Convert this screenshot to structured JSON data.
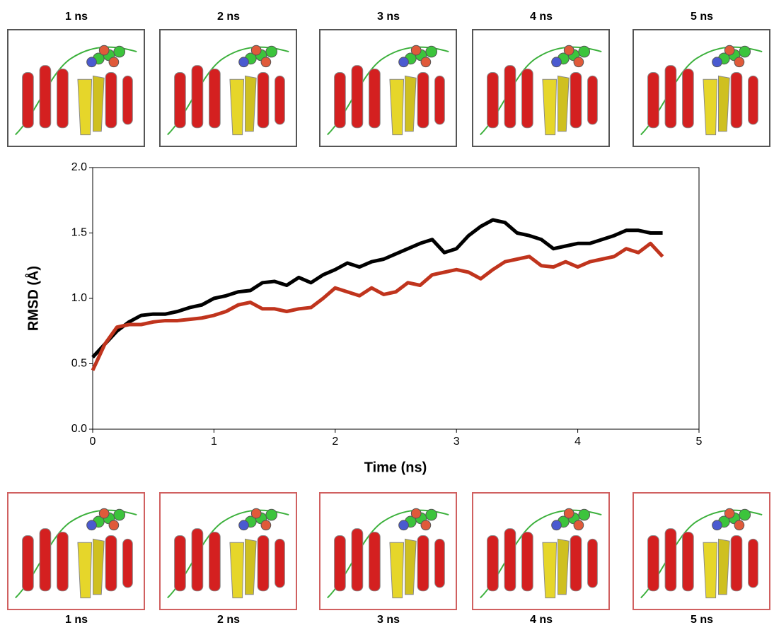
{
  "chart_data": {
    "type": "line",
    "xlabel": "Time (ns)",
    "ylabel": "RMSD (Å)",
    "x": [
      0,
      0.1,
      0.2,
      0.3,
      0.4,
      0.5,
      0.6,
      0.7,
      0.8,
      0.9,
      1.0,
      1.1,
      1.2,
      1.3,
      1.4,
      1.5,
      1.6,
      1.7,
      1.8,
      1.9,
      2.0,
      2.1,
      2.2,
      2.3,
      2.4,
      2.5,
      2.6,
      2.7,
      2.8,
      2.9,
      3.0,
      3.1,
      3.2,
      3.3,
      3.4,
      3.5,
      3.6,
      3.7,
      3.8,
      3.9,
      4.0,
      4.1,
      4.2,
      4.3,
      4.4,
      4.5,
      4.6,
      4.7
    ],
    "series": [
      {
        "color": "#000000",
        "values": [
          0.55,
          0.65,
          0.75,
          0.82,
          0.87,
          0.88,
          0.88,
          0.9,
          0.93,
          0.95,
          1.0,
          1.02,
          1.05,
          1.06,
          1.12,
          1.13,
          1.1,
          1.16,
          1.12,
          1.18,
          1.22,
          1.27,
          1.24,
          1.28,
          1.3,
          1.34,
          1.38,
          1.42,
          1.45,
          1.35,
          1.38,
          1.48,
          1.55,
          1.6,
          1.58,
          1.5,
          1.48,
          1.45,
          1.38,
          1.4,
          1.42,
          1.42,
          1.45,
          1.48,
          1.52,
          1.52,
          1.5,
          1.5
        ]
      },
      {
        "color": "#c0341d",
        "values": [
          0.45,
          0.65,
          0.78,
          0.8,
          0.8,
          0.82,
          0.83,
          0.83,
          0.84,
          0.85,
          0.87,
          0.9,
          0.95,
          0.97,
          0.92,
          0.92,
          0.9,
          0.92,
          0.93,
          1.0,
          1.08,
          1.05,
          1.02,
          1.08,
          1.03,
          1.05,
          1.12,
          1.1,
          1.18,
          1.2,
          1.22,
          1.2,
          1.15,
          1.22,
          1.28,
          1.3,
          1.32,
          1.25,
          1.24,
          1.28,
          1.24,
          1.28,
          1.3,
          1.32,
          1.38,
          1.35,
          1.42,
          1.32
        ]
      }
    ],
    "xlim": [
      0,
      5
    ],
    "xticks": [
      0,
      1,
      2,
      3,
      4,
      5
    ],
    "ylim": [
      0,
      2
    ],
    "yticks": [
      {
        "value": 0,
        "label": "0.0"
      },
      0.5,
      {
        "value": 1,
        "label": "1.0"
      },
      1.5,
      {
        "value": 2,
        "label": "2.0"
      }
    ]
  },
  "top_panels": [
    "1 ns",
    "2 ns",
    "3 ns",
    "4 ns",
    "5 ns"
  ],
  "bottom_panels": [
    "1 ns",
    "2 ns",
    "3 ns",
    "4 ns",
    "5 ns"
  ]
}
